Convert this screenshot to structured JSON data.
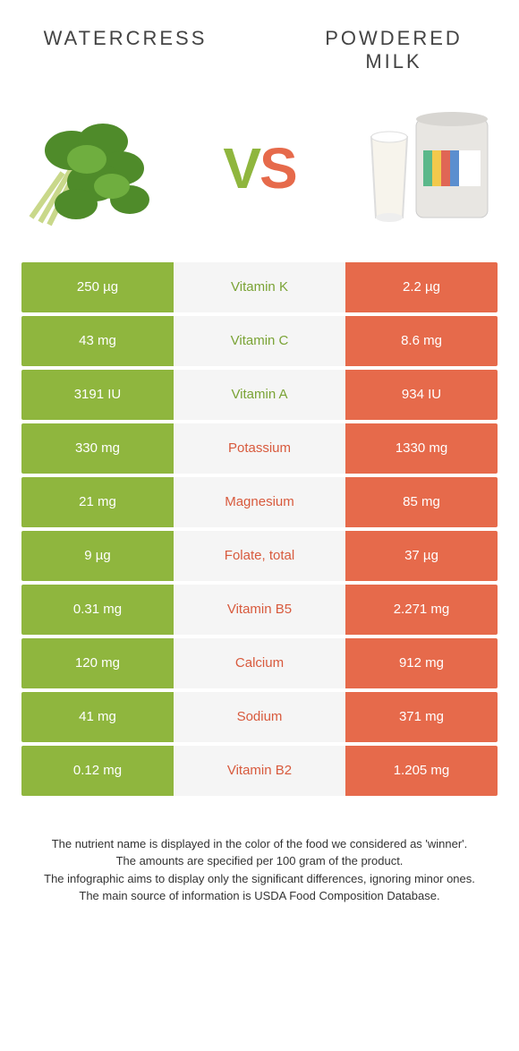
{
  "header": {
    "left": "WATERCRESS",
    "right": "POWDERED MILK"
  },
  "vs": {
    "v": "V",
    "s": "S"
  },
  "colors": {
    "green": "#8fb63e",
    "orange": "#e66a4b",
    "mid_bg": "#f5f5f5"
  },
  "rows": [
    {
      "left": "250 µg",
      "label": "Vitamin K",
      "right": "2.2 µg",
      "winner": "left"
    },
    {
      "left": "43 mg",
      "label": "Vitamin C",
      "right": "8.6 mg",
      "winner": "left"
    },
    {
      "left": "3191 IU",
      "label": "Vitamin A",
      "right": "934 IU",
      "winner": "left"
    },
    {
      "left": "330 mg",
      "label": "Potassium",
      "right": "1330 mg",
      "winner": "right"
    },
    {
      "left": "21 mg",
      "label": "Magnesium",
      "right": "85 mg",
      "winner": "right"
    },
    {
      "left": "9 µg",
      "label": "Folate, total",
      "right": "37 µg",
      "winner": "right"
    },
    {
      "left": "0.31 mg",
      "label": "Vitamin B5",
      "right": "2.271 mg",
      "winner": "right"
    },
    {
      "left": "120 mg",
      "label": "Calcium",
      "right": "912 mg",
      "winner": "right"
    },
    {
      "left": "41 mg",
      "label": "Sodium",
      "right": "371 mg",
      "winner": "right"
    },
    {
      "left": "0.12 mg",
      "label": "Vitamin B2",
      "right": "1.205 mg",
      "winner": "right"
    }
  ],
  "footer": {
    "l1": "The nutrient name is displayed in the color of the food we considered as 'winner'.",
    "l2": "The amounts are specified per 100 gram of the product.",
    "l3": "The infographic aims to display only the significant differences, ignoring minor ones.",
    "l4": "The main source of information is USDA Food Composition Database."
  }
}
